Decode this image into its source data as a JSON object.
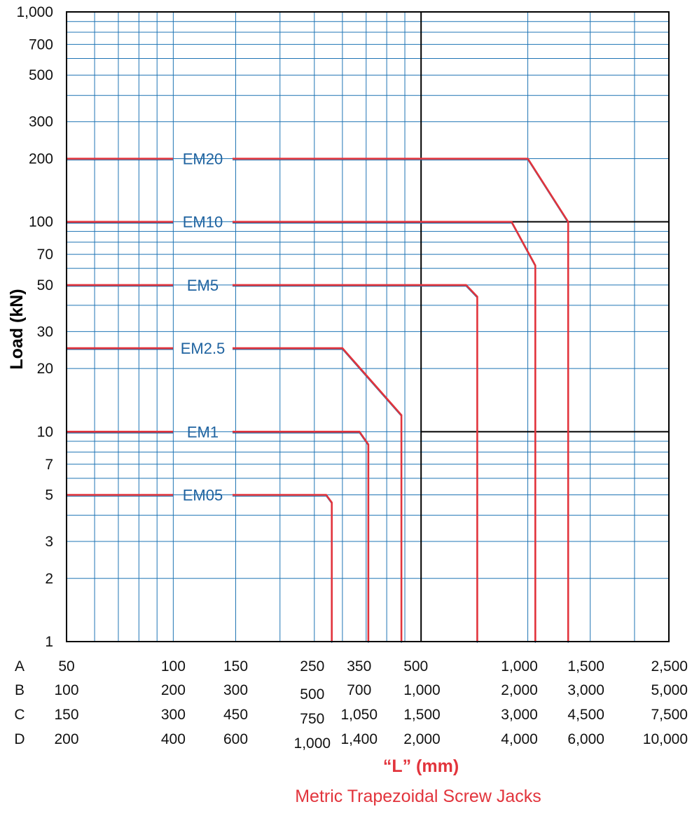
{
  "chart_data": {
    "type": "line",
    "xlabel": "“L” (mm)",
    "subtitle": "Metric Trapezoidal Screw Jacks",
    "ylabel": "Load (kN)",
    "y_scale": "log",
    "x_scale": "log",
    "ylim": [
      1,
      1000
    ],
    "xlim_row_A": [
      50,
      2500
    ],
    "grid": true,
    "y_ticks": [
      "1",
      "2",
      "3",
      "5",
      "7",
      "10",
      "20",
      "30",
      "50",
      "70",
      "100",
      "200",
      "300",
      "500",
      "700",
      "1,000"
    ],
    "x_axis_rows": [
      {
        "label": "A",
        "ticks": [
          "50",
          "100",
          "150",
          "250",
          "350",
          "500",
          "1,000",
          "1,500",
          "2,500"
        ]
      },
      {
        "label": "B",
        "ticks": [
          "100",
          "200",
          "300",
          "500",
          "700",
          "1,000",
          "2,000",
          "3,000",
          "5,000"
        ]
      },
      {
        "label": "C",
        "ticks": [
          "150",
          "300",
          "450",
          "750",
          "1,050",
          "1,500",
          "3,000",
          "4,500",
          "7,500"
        ]
      },
      {
        "label": "D",
        "ticks": [
          "200",
          "400",
          "600",
          "1,000",
          "1,400",
          "2,000",
          "4,000",
          "6,000",
          "10,000"
        ]
      }
    ],
    "series": [
      {
        "name": "EM05",
        "x_row_A": [
          50,
          270,
          280,
          280
        ],
        "y": [
          5,
          5,
          4.6,
          1
        ]
      },
      {
        "name": "EM1",
        "x_row_A": [
          50,
          335,
          355,
          355
        ],
        "y": [
          10,
          10,
          8.7,
          1
        ]
      },
      {
        "name": "EM2.5",
        "x_row_A": [
          50,
          300,
          440,
          440
        ],
        "y": [
          25,
          25,
          12,
          1
        ]
      },
      {
        "name": "EM5",
        "x_row_A": [
          50,
          670,
          720,
          720
        ],
        "y": [
          50,
          50,
          44,
          1
        ]
      },
      {
        "name": "EM10",
        "x_row_A": [
          50,
          900,
          1050,
          1050
        ],
        "y": [
          100,
          100,
          62,
          1
        ]
      },
      {
        "name": "EM20",
        "x_row_A": [
          50,
          1000,
          1300,
          1300
        ],
        "y": [
          200,
          200,
          100,
          1
        ]
      }
    ],
    "colors": {
      "curve": "#e2343c",
      "grid": "#1f74b4",
      "series_label": "#1f63a0",
      "frame": "#000000",
      "xlabel": "#e2343c"
    }
  }
}
